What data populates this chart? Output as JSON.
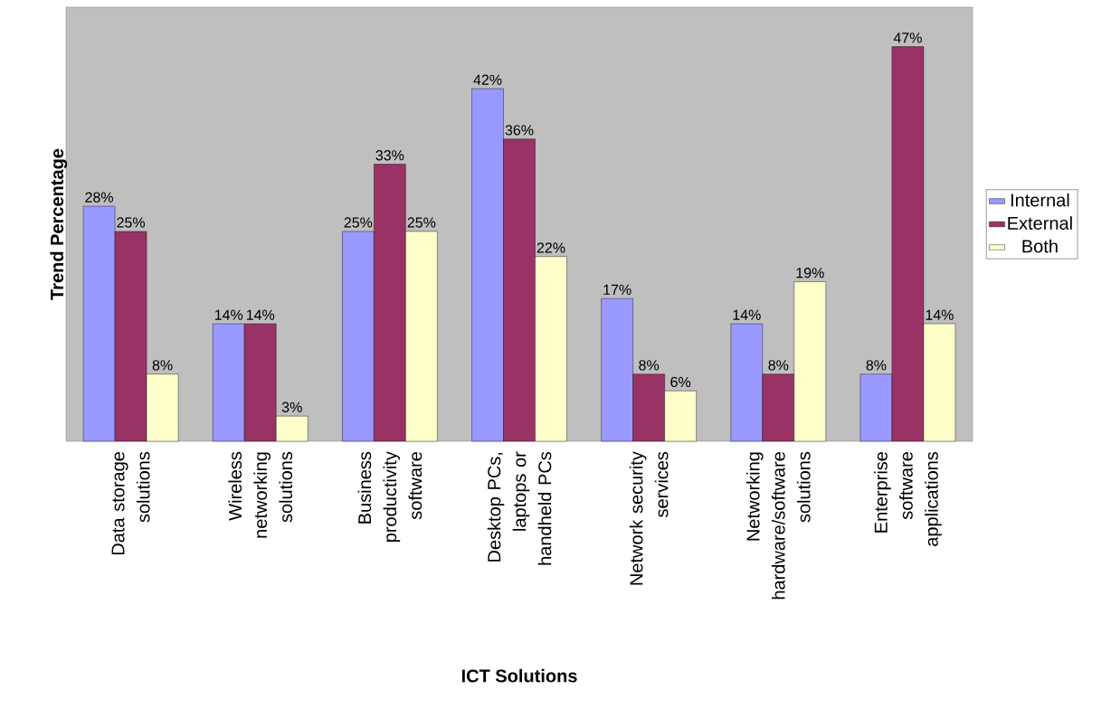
{
  "chart_data": {
    "type": "bar",
    "xlabel": "ICT Solutions",
    "ylabel": "Trend Percentage",
    "categories": [
      "Data storage solutions",
      "Wireless networking solutions",
      "Business productivity software",
      "Desktop PCs, laptops or handheld PCs",
      "Network security services",
      "Networking hardware/software solutions",
      "Enterprise software applications"
    ],
    "series": [
      {
        "name": "Internal",
        "color": "#9999ff",
        "values": [
          28,
          14,
          25,
          42,
          17,
          14,
          8
        ],
        "value_labels": [
          "28%",
          "14%",
          "25%",
          "42%",
          "17%",
          "14%",
          "8%"
        ]
      },
      {
        "name": "External",
        "color": "#993366",
        "values": [
          25,
          14,
          33,
          36,
          8,
          8,
          47
        ],
        "value_labels": [
          "25%",
          "14%",
          "33%",
          "36%",
          "8%",
          "8%",
          "47%"
        ]
      },
      {
        "name": "Both",
        "color": "#ffffcc",
        "values": [
          8,
          3,
          25,
          22,
          6,
          19,
          14
        ],
        "value_labels": [
          "8%",
          "3%",
          "25%",
          "22%",
          "6%",
          "19%",
          "14%"
        ]
      }
    ],
    "legend": "right"
  }
}
